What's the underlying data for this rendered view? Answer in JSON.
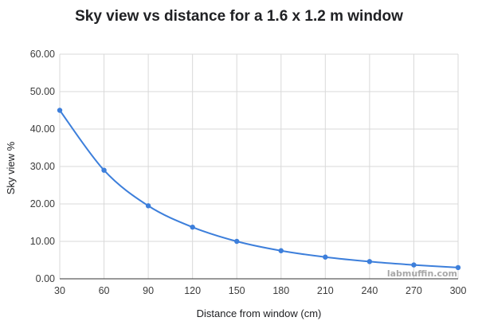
{
  "chart_data": {
    "type": "line",
    "title": "Sky view vs distance for a 1.6 x 1.2 m window",
    "xlabel": "Distance from window (cm)",
    "ylabel": "Sky view %",
    "x": [
      30,
      60,
      90,
      120,
      150,
      180,
      210,
      240,
      270,
      300
    ],
    "series": [
      {
        "values": [
          45.0,
          29.0,
          19.5,
          13.8,
          10.0,
          7.5,
          5.8,
          4.6,
          3.7,
          3.0
        ]
      }
    ],
    "xlim": [
      30,
      300
    ],
    "ylim": [
      0,
      60
    ],
    "x_ticks": [
      "30",
      "60",
      "90",
      "120",
      "150",
      "180",
      "210",
      "240",
      "270",
      "300"
    ],
    "y_ticks": [
      "0.00",
      "10.00",
      "20.00",
      "30.00",
      "40.00",
      "50.00",
      "60.00"
    ],
    "grid": true,
    "line_color": "#3d7fdb",
    "watermark": "labmuffin.com"
  }
}
